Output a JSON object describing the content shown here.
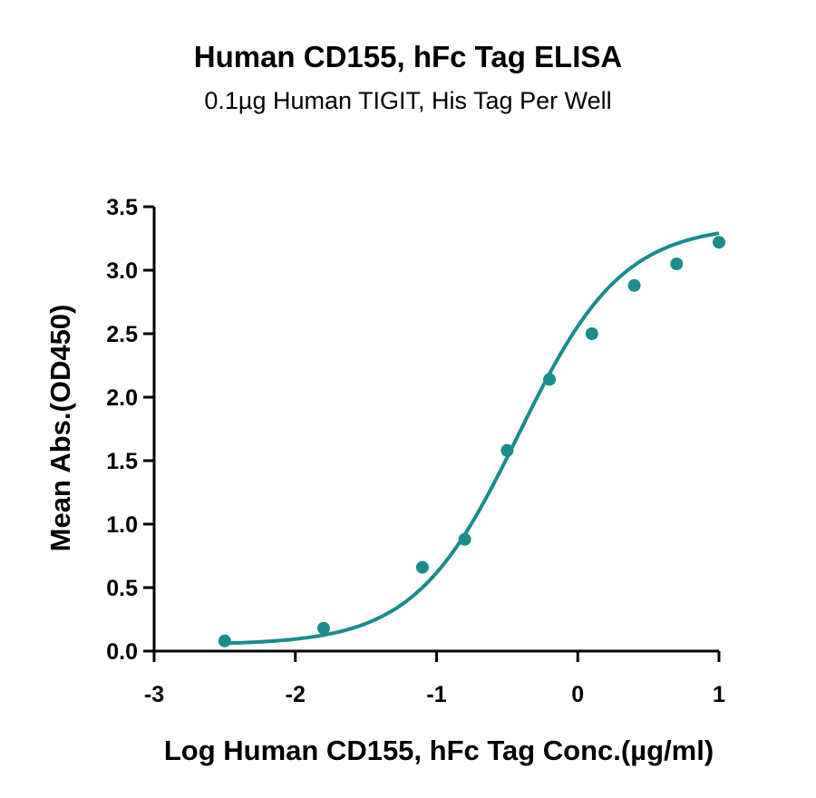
{
  "chart_data": {
    "type": "scatter",
    "title": "Human CD155, hFc Tag ELISA",
    "subtitle": "0.1µg Human TIGIT, His Tag Per Well",
    "xlabel": "Log Human CD155, hFc Tag Conc.(µg/ml)",
    "ylabel": "Mean Abs.(OD450)",
    "xlim": [
      -3,
      1
    ],
    "ylim": [
      0,
      3.5
    ],
    "x_ticks": [
      "-3",
      "-2",
      "-1",
      "0",
      "1"
    ],
    "y_ticks": [
      "0.0",
      "0.5",
      "1.0",
      "1.5",
      "2.0",
      "2.5",
      "3.0",
      "3.5"
    ],
    "grid": false,
    "color": "#1a8c8c",
    "series": [
      {
        "x": [
          -2.5,
          -1.8,
          -1.1,
          -0.8,
          -0.5,
          -0.2,
          0.1,
          0.4,
          0.7,
          1.0
        ],
        "y": [
          0.08,
          0.18,
          0.66,
          0.88,
          1.58,
          2.14,
          2.5,
          2.88,
          3.05,
          3.22
        ],
        "fit": "4PL sigmoidal curve",
        "fit_params": {
          "bottom": 0.05,
          "top": 3.36,
          "log_ec50": -0.42,
          "hill": 1.18
        }
      }
    ]
  }
}
